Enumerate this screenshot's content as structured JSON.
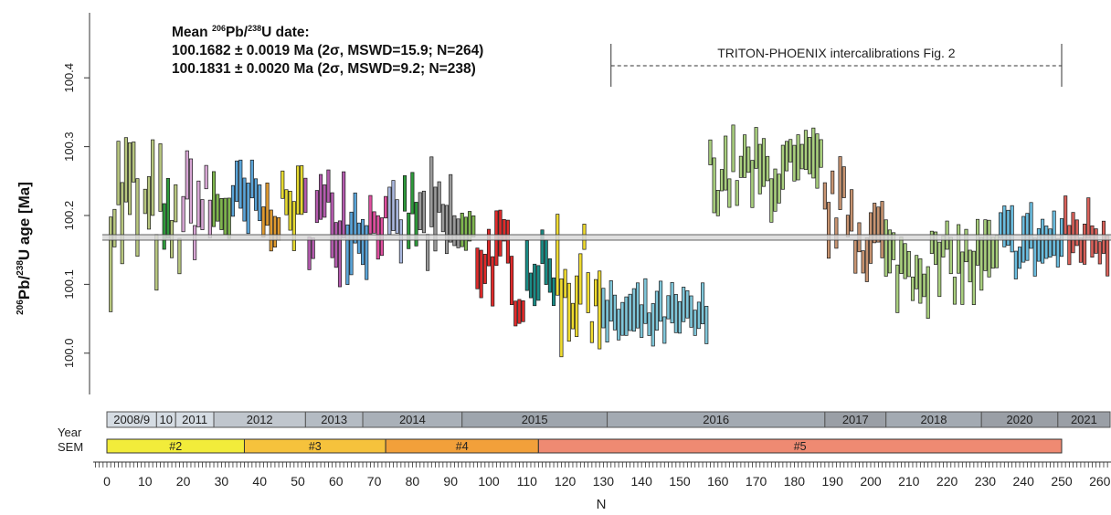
{
  "annotation": {
    "line1_prefix": "Mean ",
    "line1_sup1": "206",
    "line1_mid": "Pb/",
    "line1_sup2": "238",
    "line1_suffix": "U date:",
    "line2": "100.1682 ± 0.0019 Ma (2σ, MSWD=15.9; N=264)",
    "line3": "100.1831 ± 0.0020 Ma (2σ, MSWD=9.2; N=238)"
  },
  "y_axis_label": {
    "sup1": "206",
    "mid": "Pb/",
    "sup2": "238",
    "suffix": "U age [Ma]"
  },
  "bracket_label": "TRITON-PHOENIX intercalibrations Fig. 2",
  "row_labels": {
    "year": "Year",
    "sem": "SEM"
  },
  "chart_data": {
    "type": "bar",
    "subtype": "error-bar (2σ uncertainty boxes per analysis)",
    "xlabel": "N",
    "ylabel": "206Pb/238U age [Ma]",
    "xlim": [
      0,
      262
    ],
    "ylim": [
      99.94,
      100.46
    ],
    "x_ticks": [
      0,
      10,
      20,
      30,
      40,
      50,
      60,
      70,
      80,
      90,
      100,
      110,
      120,
      130,
      140,
      150,
      160,
      170,
      180,
      190,
      200,
      210,
      220,
      230,
      240,
      250,
      260
    ],
    "x_tick_labels": [
      "0",
      "10",
      "20",
      "30",
      "40",
      "50",
      "60",
      "70",
      "80",
      "90",
      "100",
      "110",
      "120",
      "130",
      "140",
      "150",
      "160",
      "170",
      "180",
      "190",
      "200",
      "210",
      "220",
      "230",
      "240",
      "250",
      "260"
    ],
    "y_ticks": [
      100.0,
      100.1,
      100.2,
      100.3,
      100.4
    ],
    "y_tick_labels": [
      "100.0",
      "100.1",
      "100.2",
      "100.3",
      "100.4"
    ],
    "mean_line": {
      "value": 100.1682,
      "uncertainty": 0.0019
    },
    "bracket": {
      "x_start": 132,
      "x_end": 250
    },
    "groups": [
      {
        "x_start": 1,
        "x_end": 9,
        "color": "#b8c77f",
        "center": 100.22,
        "half_range": 0.13
      },
      {
        "x_start": 10,
        "x_end": 15,
        "color": "#b8c77f",
        "center": 100.19,
        "half_range": 0.11
      },
      {
        "x_start": 15,
        "x_end": 17,
        "color": "#2e9a3b",
        "center": 100.17,
        "half_range": 0.07
      },
      {
        "x_start": 17,
        "x_end": 20,
        "color": "#b8c77f",
        "center": 100.18,
        "half_range": 0.08
      },
      {
        "x_start": 20,
        "x_end": 28,
        "color": "#d7a6d4",
        "center": 100.21,
        "half_range": 0.08
      },
      {
        "x_start": 28,
        "x_end": 33,
        "color": "#7fb64e",
        "center": 100.21,
        "half_range": 0.06
      },
      {
        "x_start": 33,
        "x_end": 41,
        "color": "#5aa4d8",
        "center": 100.21,
        "half_range": 0.07
      },
      {
        "x_start": 41,
        "x_end": 46,
        "color": "#e09a2f",
        "center": 100.2,
        "half_range": 0.04
      },
      {
        "x_start": 46,
        "x_end": 52,
        "color": "#e6da2f",
        "center": 100.21,
        "half_range": 0.05
      },
      {
        "x_start": 52,
        "x_end": 63,
        "color": "#b45bae",
        "center": 100.2,
        "half_range": 0.08
      },
      {
        "x_start": 63,
        "x_end": 69,
        "color": "#5aa4d8",
        "center": 100.19,
        "half_range": 0.07
      },
      {
        "x_start": 69,
        "x_end": 74,
        "color": "#e04fa0",
        "center": 100.19,
        "half_range": 0.04
      },
      {
        "x_start": 74,
        "x_end": 78,
        "color": "#aab8df",
        "center": 100.18,
        "half_range": 0.05
      },
      {
        "x_start": 78,
        "x_end": 82,
        "color": "#2e9a3b",
        "center": 100.2,
        "half_range": 0.06
      },
      {
        "x_start": 82,
        "x_end": 93,
        "color": "#9a9a9a",
        "center": 100.18,
        "half_range": 0.08
      },
      {
        "x_start": 93,
        "x_end": 97,
        "color": "#7fb64e",
        "center": 100.17,
        "half_range": 0.04
      },
      {
        "x_start": 97,
        "x_end": 106,
        "color": "#e02b2b",
        "center": 100.14,
        "half_range": 0.06
      },
      {
        "x_start": 106,
        "x_end": 110,
        "color": "#e02b2b",
        "center": 100.09,
        "half_range": 0.05
      },
      {
        "x_start": 110,
        "x_end": 118,
        "color": "#1a8c86",
        "center": 100.12,
        "half_range": 0.05
      },
      {
        "x_start": 118,
        "x_end": 130,
        "color": "#f0dc2f",
        "center": 100.1,
        "half_range": 0.1
      },
      {
        "x_start": 130,
        "x_end": 158,
        "color": "#7fc6d9",
        "center": 100.05,
        "half_range": 0.04
      },
      {
        "x_start": 158,
        "x_end": 188,
        "color": "#a9cf7e",
        "center": 100.26,
        "half_range": 0.06
      },
      {
        "x_start": 188,
        "x_end": 196,
        "color": "#c89471",
        "center": 100.21,
        "half_range": 0.06
      },
      {
        "x_start": 196,
        "x_end": 204,
        "color": "#c89471",
        "center": 100.17,
        "half_range": 0.06
      },
      {
        "x_start": 204,
        "x_end": 234,
        "color": "#a9cf7e",
        "center": 100.13,
        "half_range": 0.06
      },
      {
        "x_start": 234,
        "x_end": 251,
        "color": "#6bbddf",
        "center": 100.16,
        "half_range": 0.05
      },
      {
        "x_start": 251,
        "x_end": 263,
        "color": "#d9615a",
        "center": 100.17,
        "half_range": 0.05
      }
    ],
    "year_segments": [
      {
        "label": "2008/9",
        "x_start": 0,
        "x_end": 13,
        "color": "#d5dce3"
      },
      {
        "label": "10",
        "x_start": 13,
        "x_end": 18,
        "color": "#d5dce3"
      },
      {
        "label": "2011",
        "x_start": 18,
        "x_end": 28,
        "color": "#d5dce3"
      },
      {
        "label": "2012",
        "x_start": 28,
        "x_end": 52,
        "color": "#c0c6cd"
      },
      {
        "label": "2013",
        "x_start": 52,
        "x_end": 67,
        "color": "#b4bbc3"
      },
      {
        "label": "2014",
        "x_start": 67,
        "x_end": 93,
        "color": "#a9b0b8"
      },
      {
        "label": "2015",
        "x_start": 93,
        "x_end": 131,
        "color": "#9ea5ad"
      },
      {
        "label": "2016",
        "x_start": 131,
        "x_end": 188,
        "color": "#a3aab2"
      },
      {
        "label": "2017",
        "x_start": 188,
        "x_end": 204,
        "color": "#9a9fa6"
      },
      {
        "label": "2018",
        "x_start": 204,
        "x_end": 229,
        "color": "#a3aab2"
      },
      {
        "label": "2020",
        "x_start": 229,
        "x_end": 249,
        "color": "#9a9fa6"
      },
      {
        "label": "2021",
        "x_start": 249,
        "x_end": 263,
        "color": "#9a9fa6"
      }
    ],
    "sem_segments": [
      {
        "label": "#2",
        "x_start": 0,
        "x_end": 36,
        "color": "#f2ec3a"
      },
      {
        "label": "#3",
        "x_start": 36,
        "x_end": 73,
        "color": "#f6c23c"
      },
      {
        "label": "#4",
        "x_start": 73,
        "x_end": 113,
        "color": "#f2a03a"
      },
      {
        "label": "#5",
        "x_start": 113,
        "x_end": 250,
        "color": "#ef8a72"
      }
    ]
  }
}
